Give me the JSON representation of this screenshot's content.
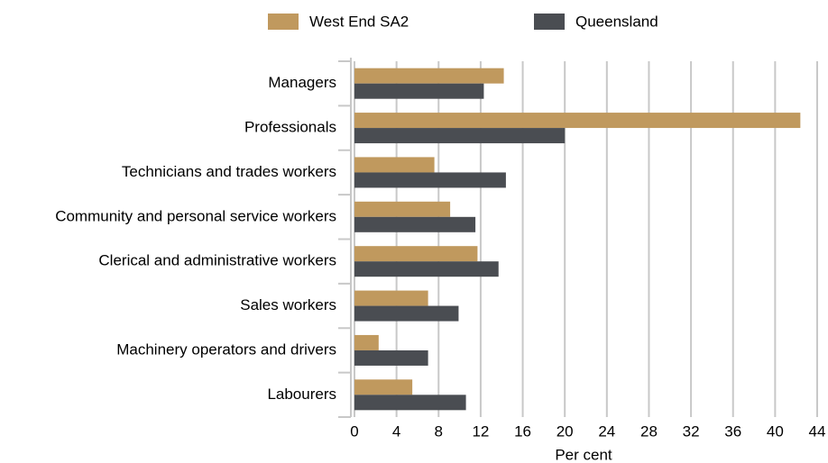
{
  "chart_data": {
    "type": "bar",
    "orientation": "horizontal",
    "categories": [
      "Managers",
      "Professionals",
      "Technicians and trades workers",
      "Community and personal service workers",
      "Clerical and administrative workers",
      "Sales workers",
      "Machinery operators and drivers",
      "Labourers"
    ],
    "series": [
      {
        "name": "West End SA2",
        "color": "#c0995e",
        "values": [
          14.2,
          42.4,
          7.6,
          9.1,
          11.7,
          7.0,
          2.3,
          5.5
        ]
      },
      {
        "name": "Queensland",
        "color": "#4a4d52",
        "values": [
          12.3,
          20.0,
          14.4,
          11.5,
          13.7,
          9.9,
          7.0,
          10.6
        ]
      }
    ],
    "xlabel": "Per cent",
    "xlim": [
      0,
      44
    ],
    "xticks": [
      0,
      4,
      8,
      12,
      16,
      20,
      24,
      28,
      32,
      36,
      40,
      44
    ],
    "grid": true,
    "legend": "top"
  }
}
